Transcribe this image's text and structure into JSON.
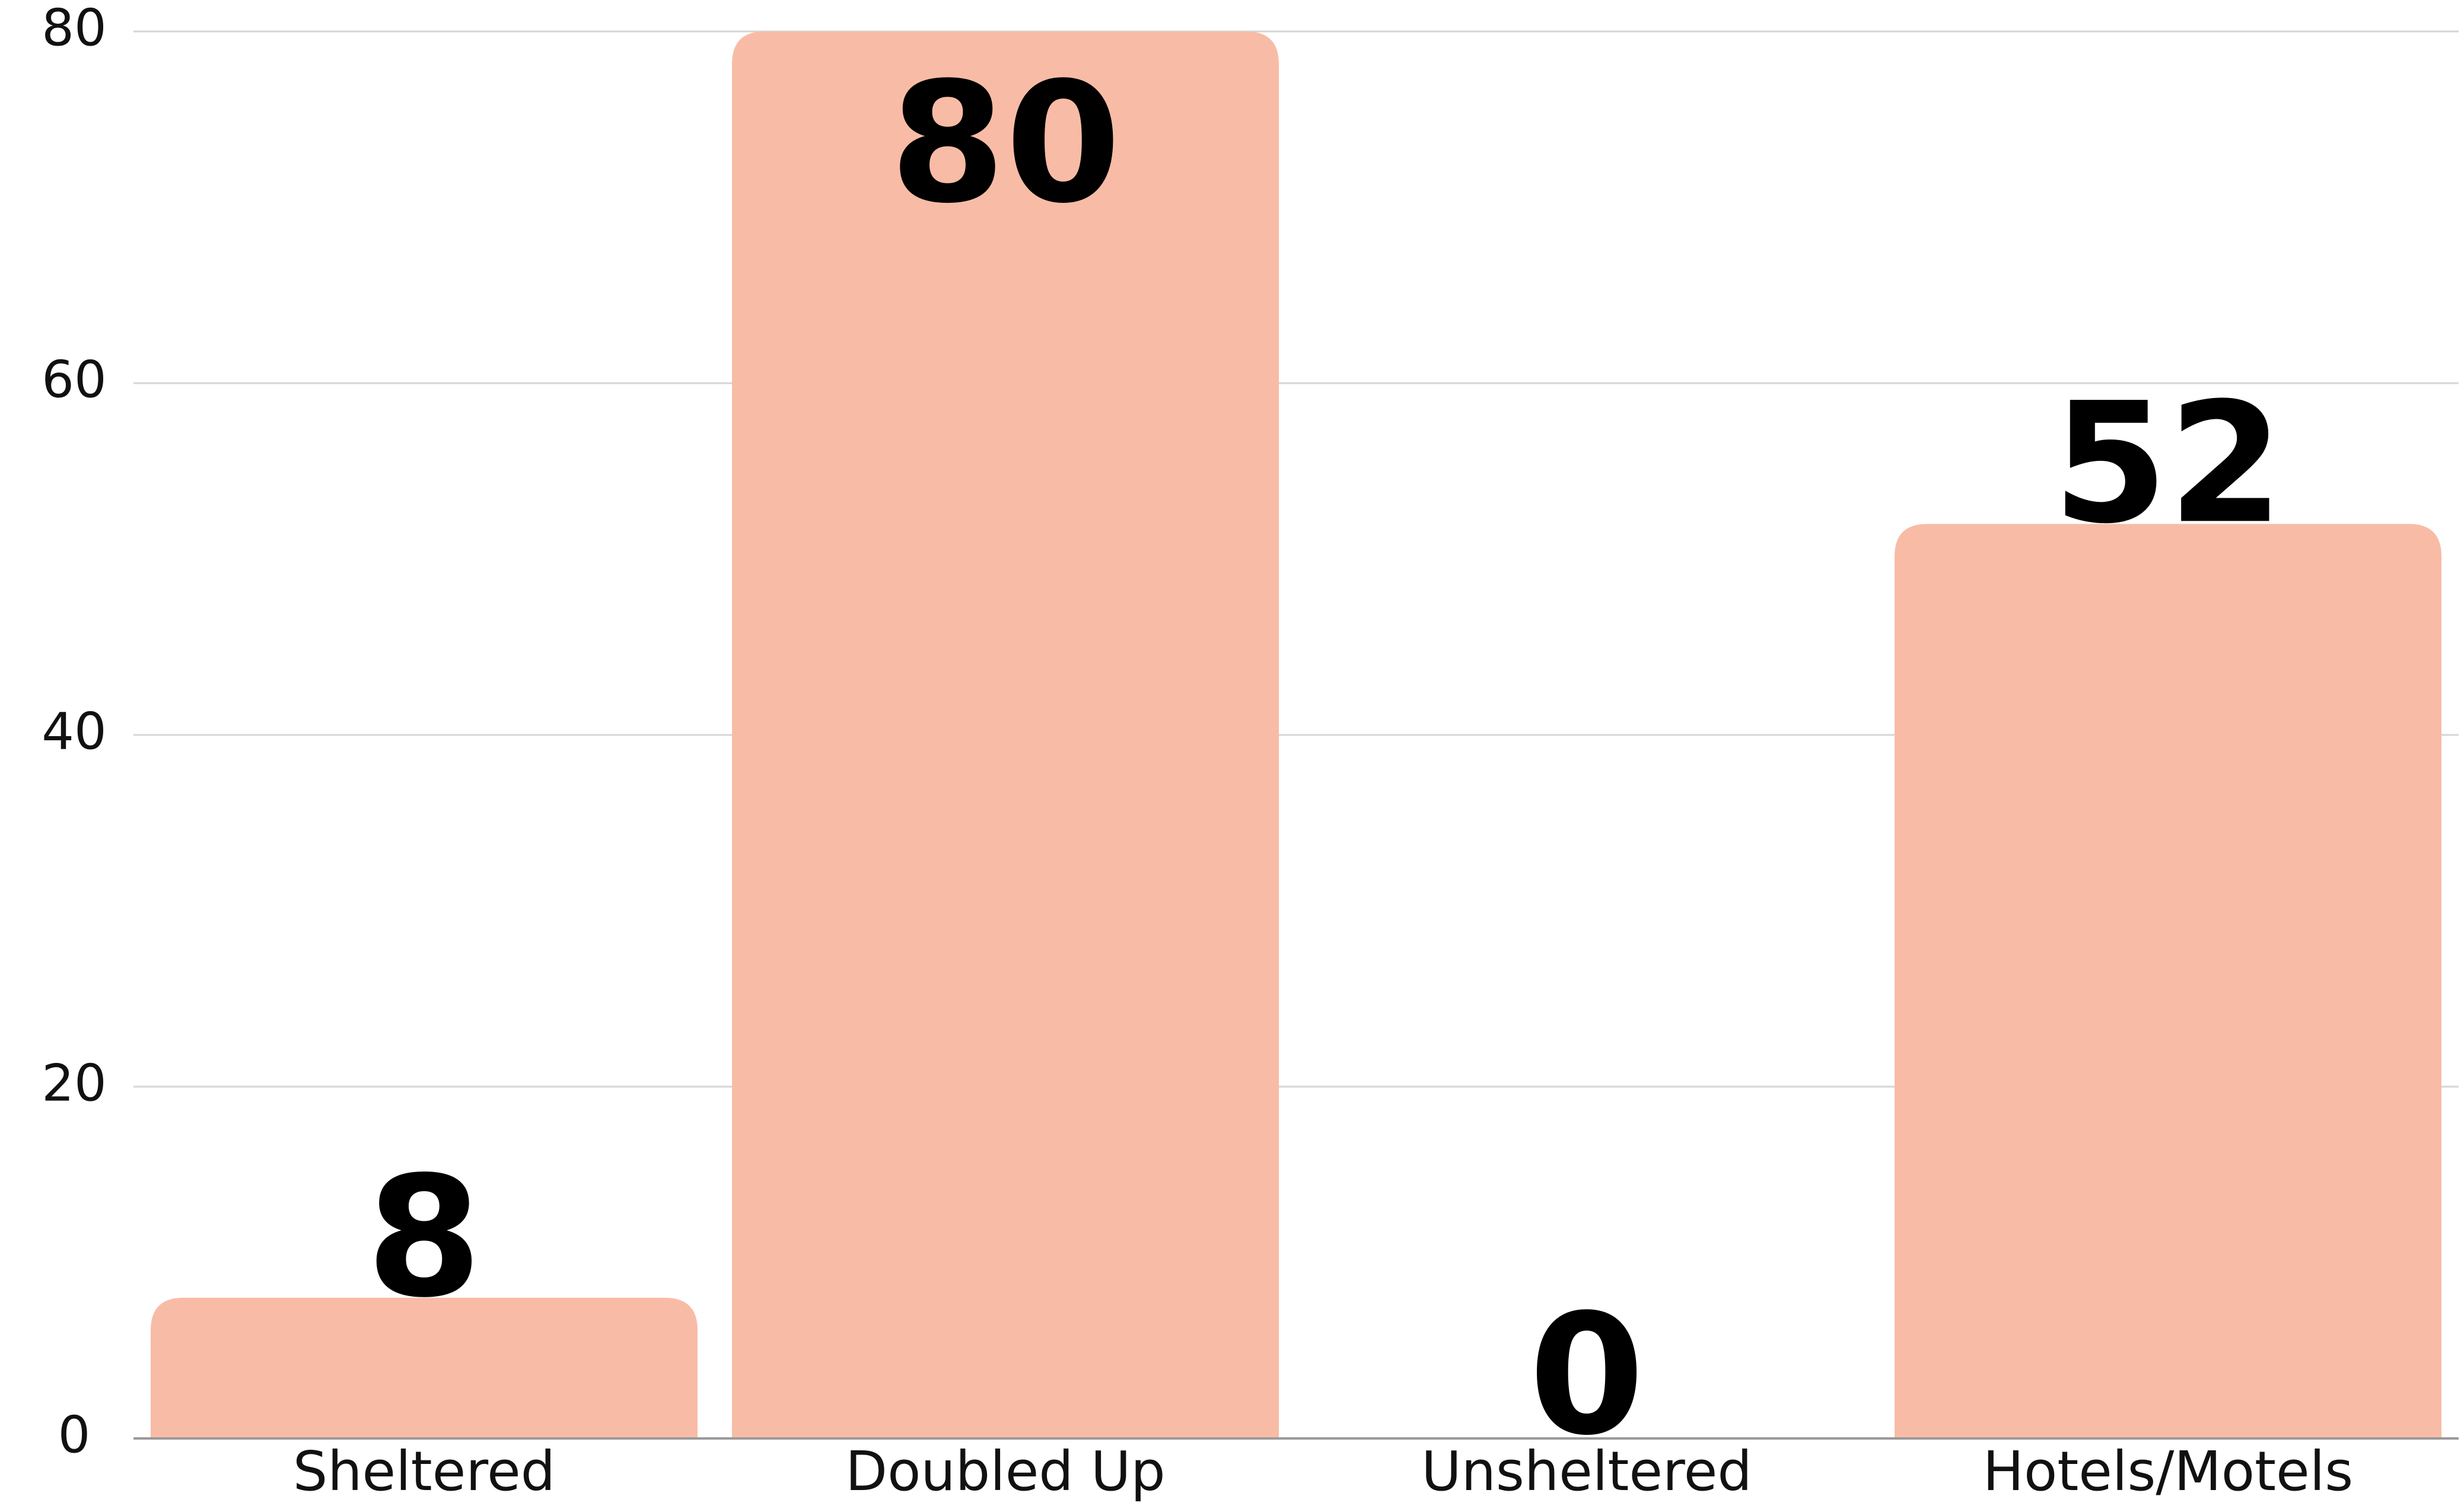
{
  "chart_data": {
    "type": "bar",
    "categories": [
      "Sheltered",
      "Doubled Up",
      "Unsheltered",
      "Hotels/Motels"
    ],
    "values": [
      8,
      80,
      0,
      52
    ],
    "data_labels": [
      "8",
      "80",
      "0",
      "52"
    ],
    "title": "",
    "xlabel": "",
    "ylabel": "",
    "ylim": [
      0,
      80
    ],
    "yticks": [
      0,
      20,
      40,
      60,
      80
    ],
    "ytick_labels": [
      "0",
      "20",
      "40",
      "60",
      "80"
    ],
    "grid": true,
    "legend": "none",
    "bar_color": "#F8BCA6"
  }
}
